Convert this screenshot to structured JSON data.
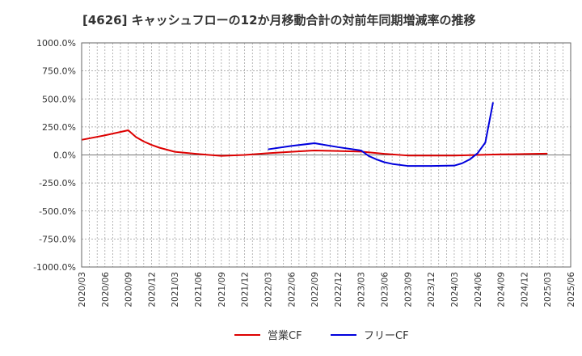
{
  "chart_data": {
    "type": "line",
    "title": "[4626]  キャッシュフローの12か月移動合計の対前年同期増減率の推移",
    "ylim": [
      -1000,
      1000
    ],
    "y_ticks": [
      "1000.0%",
      "750.0%",
      "500.0%",
      "250.0%",
      "0.0%",
      "-250.0%",
      "-500.0%",
      "-750.0%",
      "-1000.0%"
    ],
    "y_tick_values": [
      1000,
      750,
      500,
      250,
      0,
      -250,
      -500,
      -750,
      -1000
    ],
    "x_ticks": [
      "2020/03",
      "2020/06",
      "2020/09",
      "2020/12",
      "2021/03",
      "2021/06",
      "2021/09",
      "2021/12",
      "2022/03",
      "2022/06",
      "2022/09",
      "2022/12",
      "2023/03",
      "2023/06",
      "2023/09",
      "2023/12",
      "2024/03",
      "2024/06",
      "2024/09",
      "2024/12",
      "2025/03",
      "2025/06"
    ],
    "x_start": "2020/03",
    "x_end": "2025/06",
    "series": [
      {
        "name": "営業CF",
        "color": "#dd0000",
        "points": [
          [
            "2020/03",
            135
          ],
          [
            "2020/06",
            175
          ],
          [
            "2020/09",
            220
          ],
          [
            "2020/10",
            160
          ],
          [
            "2020/11",
            120
          ],
          [
            "2020/12",
            90
          ],
          [
            "2021/01",
            65
          ],
          [
            "2021/03",
            28
          ],
          [
            "2021/06",
            8
          ],
          [
            "2021/09",
            -8
          ],
          [
            "2021/12",
            0
          ],
          [
            "2022/03",
            15
          ],
          [
            "2022/06",
            28
          ],
          [
            "2022/09",
            40
          ],
          [
            "2022/12",
            35
          ],
          [
            "2023/03",
            30
          ],
          [
            "2023/06",
            10
          ],
          [
            "2023/09",
            -5
          ],
          [
            "2023/12",
            -5
          ],
          [
            "2024/03",
            -5
          ],
          [
            "2024/06",
            0
          ],
          [
            "2024/09",
            5
          ],
          [
            "2024/12",
            8
          ],
          [
            "2025/03",
            12
          ]
        ]
      },
      {
        "name": "フリーCF",
        "color": "#0000dd",
        "points": [
          [
            "2022/03",
            50
          ],
          [
            "2022/06",
            80
          ],
          [
            "2022/09",
            105
          ],
          [
            "2022/12",
            70
          ],
          [
            "2023/03",
            40
          ],
          [
            "2023/04",
            -10
          ],
          [
            "2023/05",
            -40
          ],
          [
            "2023/06",
            -65
          ],
          [
            "2023/07",
            -80
          ],
          [
            "2023/09",
            -98
          ],
          [
            "2023/12",
            -98
          ],
          [
            "2024/03",
            -95
          ],
          [
            "2024/04",
            -75
          ],
          [
            "2024/05",
            -40
          ],
          [
            "2024/06",
            15
          ],
          [
            "2024/07",
            110
          ],
          [
            "2024/08",
            470
          ]
        ]
      }
    ],
    "legend": {
      "position": "bottom",
      "labels": [
        "営業CF",
        "フリーCF"
      ]
    },
    "grid": true
  }
}
